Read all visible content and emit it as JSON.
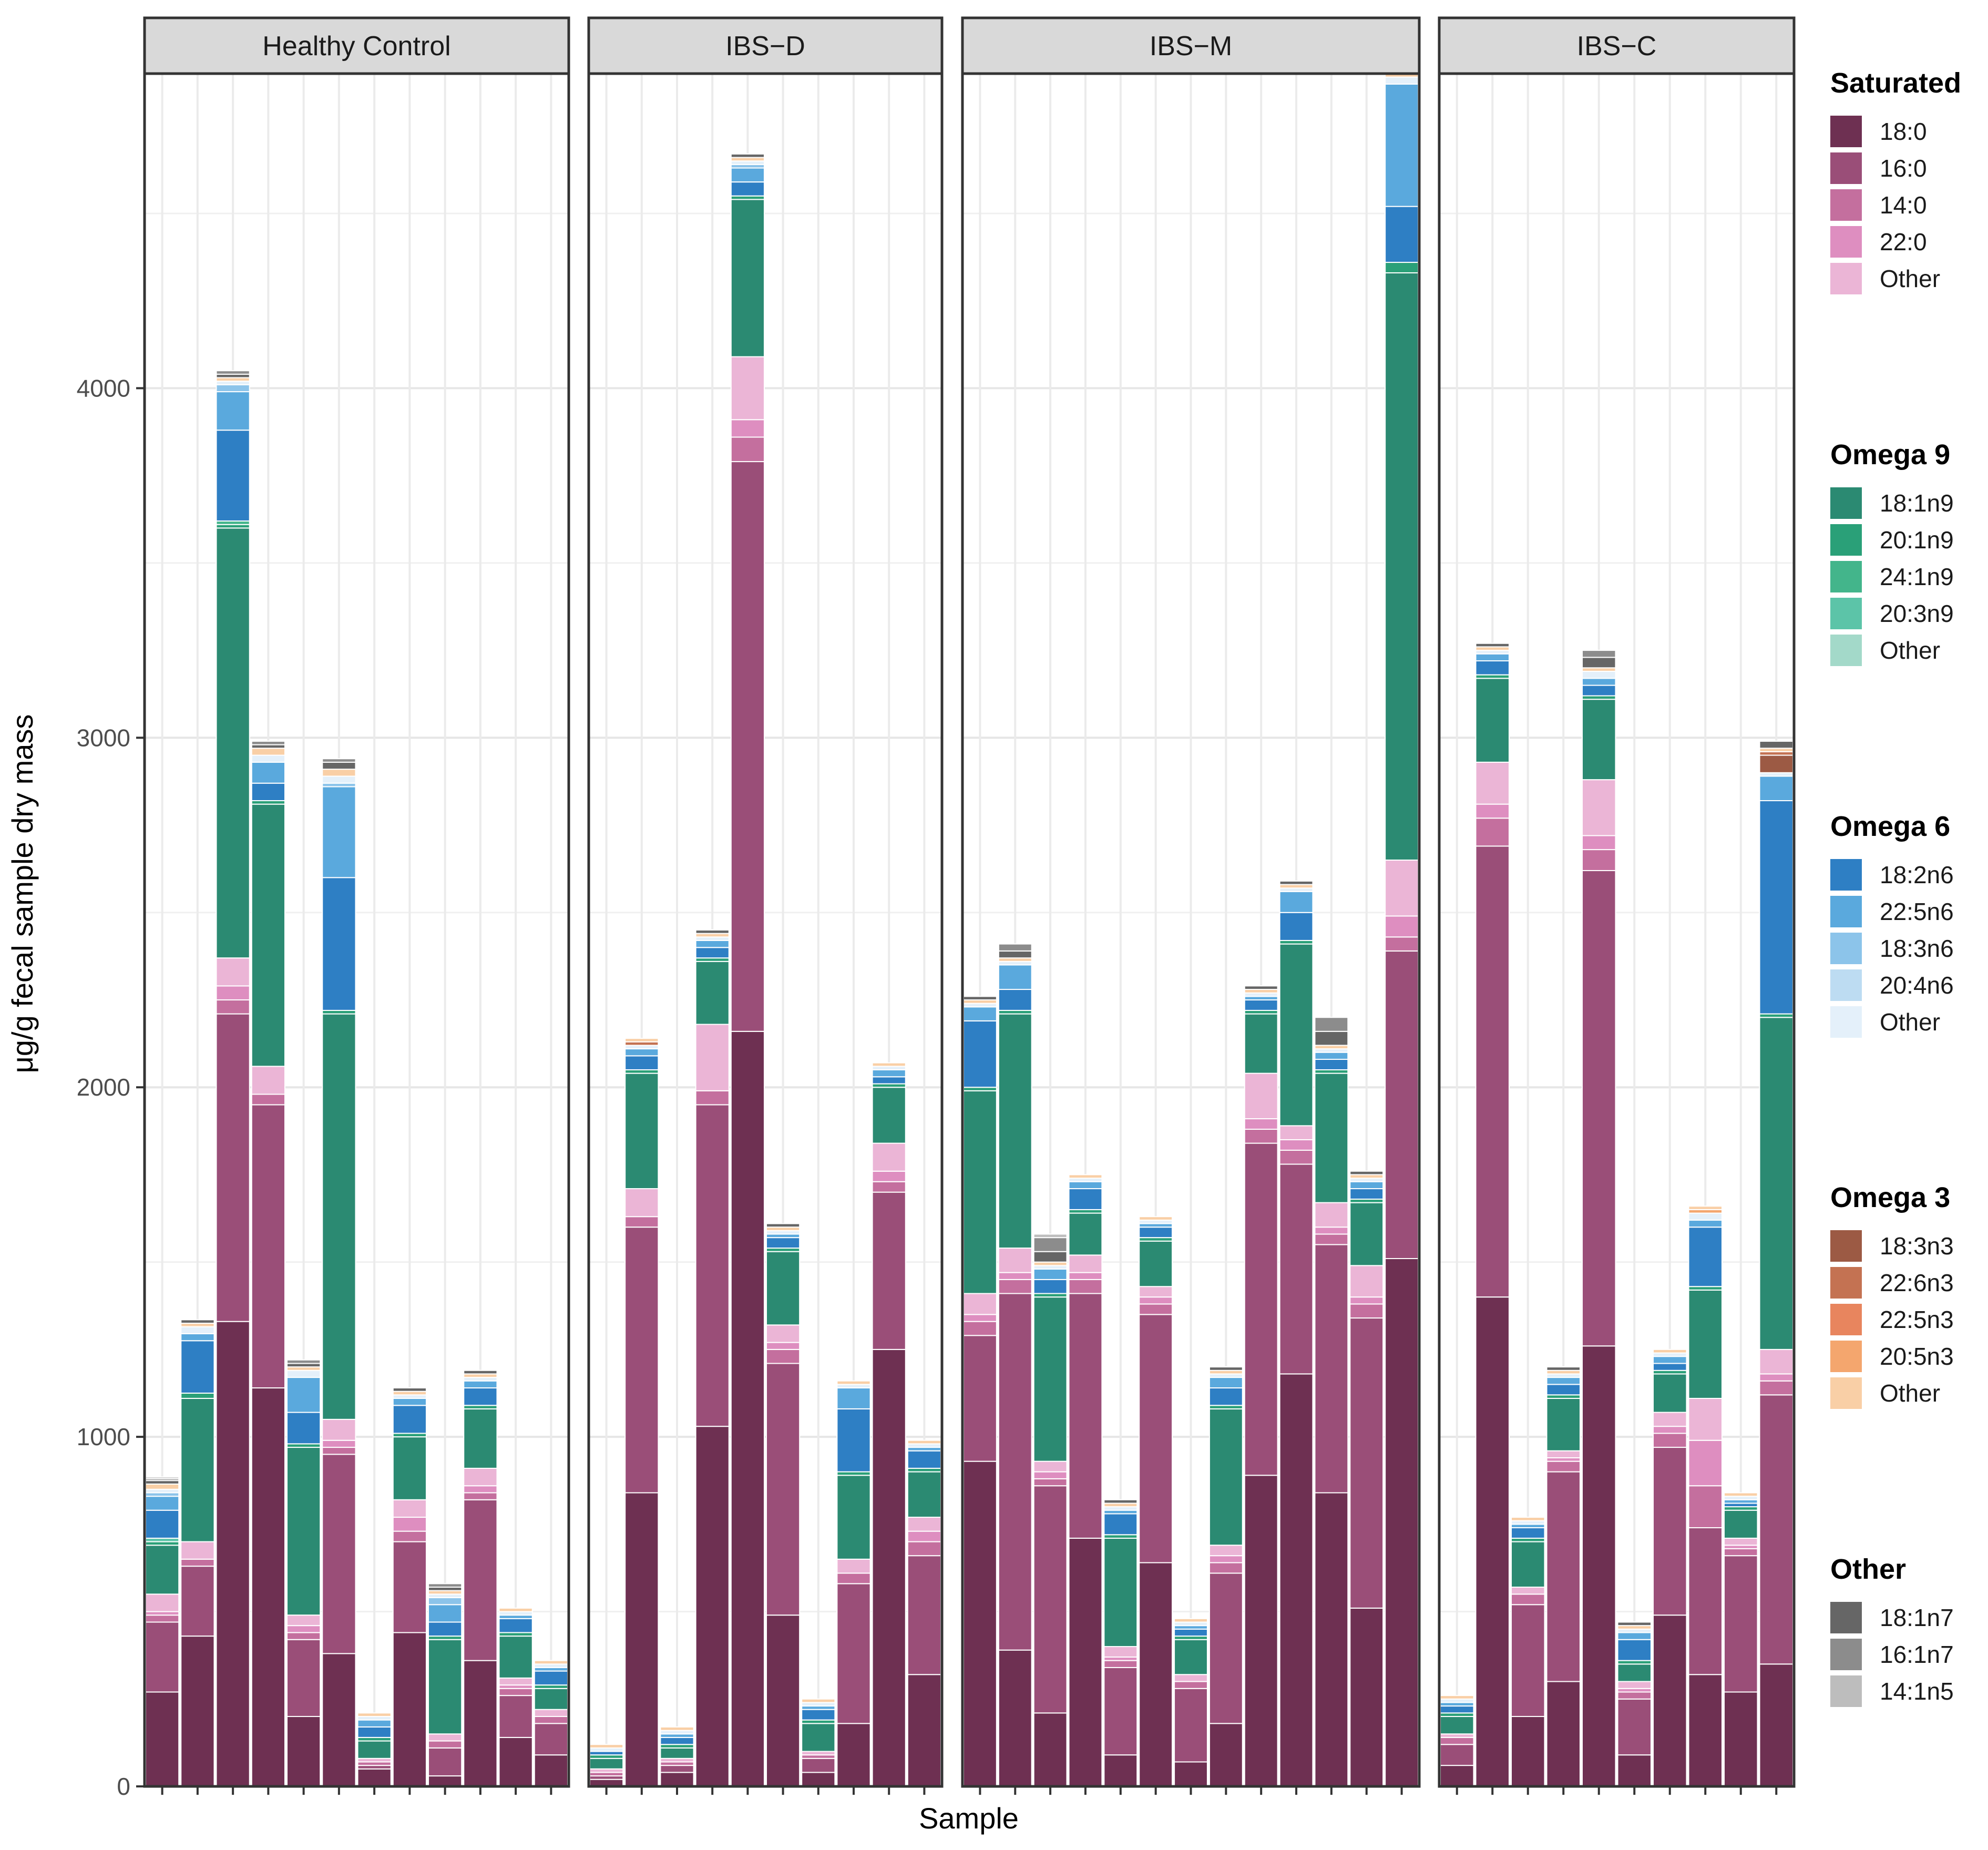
{
  "chart_data": {
    "type": "bar",
    "stacked": true,
    "xlabel": "Sample",
    "ylabel": "μg/g fecal sample dry mass",
    "ylim": [
      0,
      4900
    ],
    "yticks": [
      0,
      1000,
      2000,
      3000,
      4000
    ],
    "grid": true,
    "legend_position": "right",
    "component_order": [
      "18:0",
      "16:0",
      "14:0",
      "22:0",
      "Sat-Other",
      "18:1n9",
      "20:1n9",
      "24:1n9",
      "20:3n9",
      "O9-Other",
      "18:2n6",
      "22:5n6",
      "18:3n6",
      "20:4n6",
      "O6-Other",
      "18:3n3",
      "22:6n3",
      "22:5n3",
      "20:5n3",
      "O3-Other",
      "18:1n7",
      "16:1n7",
      "14:1n5"
    ],
    "colors": {
      "18:0": "#6e3052",
      "16:0": "#9a4e78",
      "14:0": "#c46f9e",
      "22:0": "#de8ec0",
      "Sat-Other": "#ebb5d6",
      "18:1n9": "#2b8a72",
      "20:1n9": "#2aa078",
      "24:1n9": "#43b58b",
      "20:3n9": "#5cc4a8",
      "O9-Other": "#a3d9c9",
      "18:2n6": "#2e7fc4",
      "22:5n6": "#5aa9dd",
      "18:3n6": "#8cc4ea",
      "20:4n6": "#bddcf2",
      "O6-Other": "#e4f0fa",
      "18:3n3": "#9c5a44",
      "22:6n3": "#c47252",
      "22:5n3": "#e8855e",
      "20:5n3": "#f4a66e",
      "O3-Other": "#f9cfa6",
      "18:1n7": "#666666",
      "16:1n7": "#8c8c8c",
      "14:1n5": "#bdbdbd"
    },
    "legend": [
      {
        "title": "Saturated",
        "items": [
          {
            "label": "18:0",
            "key": "18:0"
          },
          {
            "label": "16:0",
            "key": "16:0"
          },
          {
            "label": "14:0",
            "key": "14:0"
          },
          {
            "label": "22:0",
            "key": "22:0"
          },
          {
            "label": "Other",
            "key": "Sat-Other"
          }
        ]
      },
      {
        "title": "Omega 9",
        "items": [
          {
            "label": "18:1n9",
            "key": "18:1n9"
          },
          {
            "label": "20:1n9",
            "key": "20:1n9"
          },
          {
            "label": "24:1n9",
            "key": "24:1n9"
          },
          {
            "label": "20:3n9",
            "key": "20:3n9"
          },
          {
            "label": "Other",
            "key": "O9-Other"
          }
        ]
      },
      {
        "title": "Omega 6",
        "items": [
          {
            "label": "18:2n6",
            "key": "18:2n6"
          },
          {
            "label": "22:5n6",
            "key": "22:5n6"
          },
          {
            "label": "18:3n6",
            "key": "18:3n6"
          },
          {
            "label": "20:4n6",
            "key": "20:4n6"
          },
          {
            "label": "Other",
            "key": "O6-Other"
          }
        ]
      },
      {
        "title": "Omega 3",
        "items": [
          {
            "label": "18:3n3",
            "key": "18:3n3"
          },
          {
            "label": "22:6n3",
            "key": "22:6n3"
          },
          {
            "label": "22:5n3",
            "key": "22:5n3"
          },
          {
            "label": "20:5n3",
            "key": "20:5n3"
          },
          {
            "label": "Other",
            "key": "O3-Other"
          }
        ]
      },
      {
        "title": "Other",
        "items": [
          {
            "label": "18:1n7",
            "key": "18:1n7"
          },
          {
            "label": "16:1n7",
            "key": "16:1n7"
          },
          {
            "label": "14:1n5",
            "key": "14:1n5"
          }
        ]
      }
    ],
    "panels": [
      {
        "name": "Healthy Control",
        "bars": [
          {
            "18:0": 270,
            "16:0": 200,
            "14:0": 20,
            "22:0": 10,
            "Sat-Other": 50,
            "18:1n9": 140,
            "20:1n9": 10,
            "18:2n6": 80,
            "22:5n6": 40,
            "18:3n6": 10,
            "20:3n9": 10,
            "O6-Other": 10,
            "O3-Other": 15,
            "18:1n7": 10,
            "16:1n7": 5,
            "14:1n5": 5
          },
          {
            "18:0": 430,
            "16:0": 200,
            "14:0": 20,
            "Sat-Other": 50,
            "18:1n9": 410,
            "20:1n9": 15,
            "18:2n6": 150,
            "22:5n6": 20,
            "O6-Other": 20,
            "O3-Other": 10,
            "18:1n7": 10
          },
          {
            "18:0": 1330,
            "16:0": 880,
            "14:0": 40,
            "22:0": 40,
            "Sat-Other": 80,
            "18:1n9": 1230,
            "20:1n9": 10,
            "24:1n9": 10,
            "18:2n6": 260,
            "22:5n6": 110,
            "18:3n6": 20,
            "O6-Other": 10,
            "O3-Other": 10,
            "18:1n7": 10,
            "16:1n7": 10
          },
          {
            "18:0": 1140,
            "16:0": 810,
            "14:0": 30,
            "Sat-Other": 80,
            "18:1n9": 750,
            "20:1n9": 10,
            "18:2n6": 50,
            "22:5n6": 60,
            "O6-Other": 20,
            "O3-Other": 20,
            "18:1n7": 10,
            "16:1n7": 10
          },
          {
            "18:0": 200,
            "16:0": 220,
            "14:0": 20,
            "22:0": 20,
            "Sat-Other": 30,
            "18:1n9": 480,
            "20:1n9": 10,
            "18:2n6": 90,
            "22:5n6": 100,
            "O6-Other": 20,
            "O3-Other": 10,
            "18:1n7": 10,
            "16:1n7": 10
          },
          {
            "18:0": 380,
            "16:0": 570,
            "14:0": 20,
            "22:0": 20,
            "Sat-Other": 60,
            "18:1n9": 1160,
            "20:1n9": 10,
            "18:2n6": 380,
            "22:5n6": 260,
            "18:3n6": 10,
            "O6-Other": 20,
            "O3-Other": 20,
            "18:1n7": 20,
            "16:1n7": 10
          },
          {
            "18:0": 50,
            "16:0": 10,
            "14:0": 10,
            "Sat-Other": 10,
            "18:1n9": 50,
            "20:1n9": 10,
            "18:2n6": 30,
            "22:5n6": 20,
            "O6-Other": 10,
            "O3-Other": 10
          },
          {
            "18:0": 440,
            "16:0": 260,
            "14:0": 30,
            "22:0": 40,
            "Sat-Other": 50,
            "18:1n9": 180,
            "20:1n9": 10,
            "18:2n6": 80,
            "22:5n6": 20,
            "O6-Other": 10,
            "O3-Other": 10,
            "18:1n7": 10
          },
          {
            "18:0": 30,
            "16:0": 80,
            "14:0": 20,
            "Sat-Other": 20,
            "18:1n9": 270,
            "20:1n9": 10,
            "18:2n6": 40,
            "22:5n6": 50,
            "18:3n6": 20,
            "O6-Other": 10,
            "O3-Other": 10,
            "18:1n7": 10,
            "16:1n7": 10
          },
          {
            "18:0": 360,
            "16:0": 460,
            "14:0": 20,
            "22:0": 20,
            "Sat-Other": 50,
            "18:1n9": 170,
            "20:1n9": 10,
            "18:2n6": 50,
            "22:5n6": 20,
            "O6-Other": 10,
            "O3-Other": 10,
            "18:1n7": 10
          },
          {
            "18:0": 140,
            "16:0": 120,
            "14:0": 20,
            "22:0": 10,
            "Sat-Other": 20,
            "18:1n9": 120,
            "20:1n9": 10,
            "18:2n6": 40,
            "22:5n6": 10,
            "O6-Other": 10,
            "O3-Other": 10
          },
          {
            "18:0": 90,
            "16:0": 90,
            "14:0": 20,
            "Sat-Other": 20,
            "18:1n9": 60,
            "20:1n9": 10,
            "18:2n6": 40,
            "22:5n6": 10,
            "O6-Other": 10,
            "O3-Other": 10
          }
        ]
      },
      {
        "name": "IBS−D",
        "bars": [
          {
            "18:0": 20,
            "16:0": 10,
            "14:0": 10,
            "Sat-Other": 10,
            "18:1n9": 30,
            "20:1n9": 10,
            "18:2n6": 10,
            "O6-Other": 10,
            "O3-Other": 10
          },
          {
            "18:0": 840,
            "16:0": 760,
            "14:0": 30,
            "Sat-Other": 80,
            "18:1n9": 330,
            "20:1n9": 10,
            "18:2n6": 40,
            "22:5n6": 20,
            "O6-Other": 10,
            "22:6n3": 10,
            "O3-Other": 10
          },
          {
            "18:0": 40,
            "16:0": 20,
            "14:0": 10,
            "Sat-Other": 10,
            "18:1n9": 30,
            "20:1n9": 10,
            "18:2n6": 20,
            "22:5n6": 10,
            "O6-Other": 10,
            "O3-Other": 10
          },
          {
            "18:0": 1030,
            "16:0": 920,
            "14:0": 40,
            "Sat-Other": 190,
            "18:1n9": 180,
            "20:1n9": 10,
            "18:2n6": 30,
            "22:5n6": 20,
            "O6-Other": 10,
            "O3-Other": 10,
            "18:1n7": 10
          },
          {
            "18:0": 2160,
            "16:0": 1630,
            "14:0": 70,
            "22:0": 50,
            "Sat-Other": 180,
            "18:1n9": 450,
            "20:1n9": 10,
            "18:2n6": 40,
            "22:5n6": 40,
            "18:3n6": 10,
            "O6-Other": 10,
            "O3-Other": 10,
            "18:1n7": 10
          },
          {
            "18:0": 490,
            "16:0": 720,
            "14:0": 40,
            "22:0": 20,
            "Sat-Other": 50,
            "18:1n9": 210,
            "20:1n9": 10,
            "18:2n6": 30,
            "22:5n6": 10,
            "O6-Other": 10,
            "O3-Other": 10,
            "18:1n7": 10
          },
          {
            "18:0": 40,
            "16:0": 40,
            "14:0": 10,
            "Sat-Other": 10,
            "18:1n9": 80,
            "20:1n9": 10,
            "18:2n6": 30,
            "22:5n6": 10,
            "O6-Other": 10,
            "O3-Other": 10
          },
          {
            "18:0": 180,
            "16:0": 400,
            "14:0": 30,
            "Sat-Other": 40,
            "18:1n9": 240,
            "20:1n9": 10,
            "18:2n6": 180,
            "22:5n6": 60,
            "O6-Other": 10,
            "O3-Other": 10
          },
          {
            "18:0": 1250,
            "16:0": 450,
            "14:0": 30,
            "22:0": 30,
            "Sat-Other": 80,
            "18:1n9": 160,
            "20:1n9": 10,
            "18:2n6": 20,
            "22:5n6": 20,
            "O6-Other": 10,
            "O3-Other": 10
          },
          {
            "18:0": 320,
            "16:0": 340,
            "14:0": 40,
            "22:0": 30,
            "Sat-Other": 40,
            "18:1n9": 130,
            "20:1n9": 10,
            "18:2n6": 50,
            "22:5n6": 10,
            "O6-Other": 10,
            "O3-Other": 10
          }
        ]
      },
      {
        "name": "IBS−M",
        "bars": [
          {
            "18:0": 930,
            "16:0": 360,
            "14:0": 40,
            "22:0": 20,
            "Sat-Other": 60,
            "18:1n9": 580,
            "20:1n9": 10,
            "18:2n6": 190,
            "22:5n6": 40,
            "O6-Other": 10,
            "O3-Other": 10,
            "18:1n7": 10
          },
          {
            "18:0": 390,
            "16:0": 1020,
            "14:0": 40,
            "22:0": 20,
            "Sat-Other": 70,
            "18:1n9": 670,
            "20:1n9": 10,
            "18:2n6": 60,
            "22:5n6": 70,
            "O6-Other": 10,
            "O3-Other": 10,
            "18:1n7": 20,
            "16:1n7": 20
          },
          {
            "18:0": 210,
            "16:0": 650,
            "14:0": 20,
            "22:0": 20,
            "Sat-Other": 30,
            "18:1n9": 470,
            "20:1n9": 10,
            "18:2n6": 40,
            "22:5n6": 30,
            "O6-Other": 10,
            "O3-Other": 10,
            "18:1n7": 30,
            "16:1n7": 40,
            "14:1n5": 10
          },
          {
            "18:0": 710,
            "16:0": 700,
            "14:0": 40,
            "22:0": 20,
            "Sat-Other": 50,
            "18:1n9": 120,
            "20:1n9": 10,
            "18:2n6": 60,
            "22:5n6": 20,
            "O6-Other": 10,
            "O3-Other": 10
          },
          {
            "18:0": 90,
            "16:0": 250,
            "14:0": 20,
            "22:0": 10,
            "Sat-Other": 30,
            "18:1n9": 310,
            "20:1n9": 10,
            "18:2n6": 60,
            "22:5n6": 10,
            "O6-Other": 10,
            "O3-Other": 10,
            "18:1n7": 10
          },
          {
            "18:0": 640,
            "16:0": 710,
            "14:0": 30,
            "22:0": 20,
            "Sat-Other": 30,
            "18:1n9": 130,
            "20:1n9": 10,
            "18:2n6": 30,
            "22:5n6": 10,
            "O6-Other": 10,
            "O3-Other": 10
          },
          {
            "18:0": 70,
            "16:0": 210,
            "14:0": 20,
            "Sat-Other": 20,
            "18:1n9": 100,
            "20:1n9": 10,
            "18:2n6": 20,
            "22:5n6": 10,
            "O6-Other": 10,
            "O3-Other": 10
          },
          {
            "18:0": 180,
            "16:0": 430,
            "14:0": 30,
            "22:0": 20,
            "Sat-Other": 30,
            "18:1n9": 390,
            "20:1n9": 10,
            "18:2n6": 50,
            "22:5n6": 30,
            "O6-Other": 10,
            "O3-Other": 10,
            "18:1n7": 10
          },
          {
            "18:0": 890,
            "16:0": 950,
            "14:0": 40,
            "22:0": 30,
            "Sat-Other": 130,
            "18:1n9": 170,
            "20:1n9": 10,
            "18:2n6": 30,
            "22:5n6": 10,
            "O6-Other": 10,
            "O3-Other": 10,
            "18:1n7": 10
          },
          {
            "18:0": 1180,
            "16:0": 600,
            "14:0": 40,
            "22:0": 30,
            "Sat-Other": 40,
            "18:1n9": 520,
            "20:1n9": 10,
            "18:2n6": 80,
            "22:5n6": 60,
            "O6-Other": 10,
            "O3-Other": 10,
            "18:1n7": 10
          },
          {
            "18:0": 840,
            "16:0": 710,
            "14:0": 30,
            "22:0": 20,
            "Sat-Other": 70,
            "18:1n9": 370,
            "20:1n9": 10,
            "18:2n6": 30,
            "22:5n6": 20,
            "O6-Other": 10,
            "O3-Other": 10,
            "18:1n7": 40,
            "16:1n7": 40
          },
          {
            "18:0": 510,
            "16:0": 830,
            "14:0": 40,
            "22:0": 20,
            "Sat-Other": 90,
            "18:1n9": 180,
            "20:1n9": 10,
            "18:2n6": 30,
            "22:5n6": 20,
            "O6-Other": 10,
            "O3-Other": 10,
            "18:1n7": 10
          },
          {
            "18:0": 1510,
            "16:0": 880,
            "14:0": 40,
            "22:0": 60,
            "Sat-Other": 160,
            "18:1n9": 1680,
            "20:1n9": 30,
            "18:2n6": 160,
            "22:5n6": 350,
            "O6-Other": 20,
            "O3-Other": 10
          }
        ]
      },
      {
        "name": "IBS−C",
        "bars": [
          {
            "18:0": 60,
            "16:0": 60,
            "14:0": 20,
            "Sat-Other": 10,
            "18:1n9": 50,
            "20:1n9": 10,
            "18:2n6": 20,
            "22:5n6": 10,
            "O6-Other": 10,
            "O3-Other": 10
          },
          {
            "18:0": 1400,
            "16:0": 1290,
            "14:0": 80,
            "22:0": 40,
            "Sat-Other": 120,
            "18:1n9": 240,
            "20:1n9": 10,
            "18:2n6": 40,
            "22:5n6": 20,
            "O6-Other": 10,
            "O3-Other": 10,
            "18:1n7": 10
          },
          {
            "18:0": 200,
            "16:0": 320,
            "14:0": 30,
            "Sat-Other": 20,
            "18:1n9": 130,
            "20:1n9": 10,
            "18:2n6": 30,
            "22:5n6": 10,
            "O6-Other": 10,
            "O3-Other": 10
          },
          {
            "18:0": 300,
            "16:0": 600,
            "14:0": 30,
            "22:0": 10,
            "Sat-Other": 20,
            "18:1n9": 150,
            "20:1n9": 10,
            "18:2n6": 30,
            "22:5n6": 20,
            "O6-Other": 10,
            "O3-Other": 10,
            "18:1n7": 10
          },
          {
            "18:0": 1260,
            "16:0": 1360,
            "14:0": 60,
            "22:0": 40,
            "Sat-Other": 160,
            "18:1n9": 230,
            "20:1n9": 10,
            "18:2n6": 30,
            "22:5n6": 20,
            "O6-Other": 20,
            "O3-Other": 10,
            "18:1n7": 30,
            "16:1n7": 20
          },
          {
            "18:0": 90,
            "16:0": 160,
            "14:0": 20,
            "22:0": 10,
            "Sat-Other": 20,
            "18:1n9": 50,
            "20:1n9": 10,
            "18:2n6": 60,
            "22:5n6": 20,
            "O6-Other": 10,
            "O3-Other": 10,
            "18:1n7": 10
          },
          {
            "18:0": 490,
            "16:0": 480,
            "14:0": 40,
            "22:0": 20,
            "Sat-Other": 40,
            "18:1n9": 110,
            "20:1n9": 10,
            "18:2n6": 20,
            "22:5n6": 20,
            "O6-Other": 10,
            "O3-Other": 10
          },
          {
            "18:0": 320,
            "16:0": 420,
            "14:0": 120,
            "22:0": 130,
            "Sat-Other": 120,
            "18:1n9": 310,
            "20:1n9": 10,
            "18:2n6": 170,
            "22:5n6": 20,
            "O6-Other": 20,
            "20:5n3": 10,
            "O3-Other": 10
          },
          {
            "18:0": 270,
            "16:0": 390,
            "14:0": 20,
            "22:0": 10,
            "Sat-Other": 20,
            "18:1n9": 80,
            "20:1n9": 10,
            "18:2n6": 10,
            "22:5n6": 10,
            "O6-Other": 10,
            "O3-Other": 10
          },
          {
            "18:0": 350,
            "16:0": 770,
            "14:0": 40,
            "22:0": 20,
            "Sat-Other": 70,
            "18:1n9": 950,
            "20:1n9": 10,
            "18:2n6": 610,
            "22:5n6": 70,
            "O6-Other": 10,
            "18:3n3": 50,
            "22:6n3": 10,
            "O3-Other": 10,
            "18:1n7": 20
          }
        ]
      }
    ]
  }
}
